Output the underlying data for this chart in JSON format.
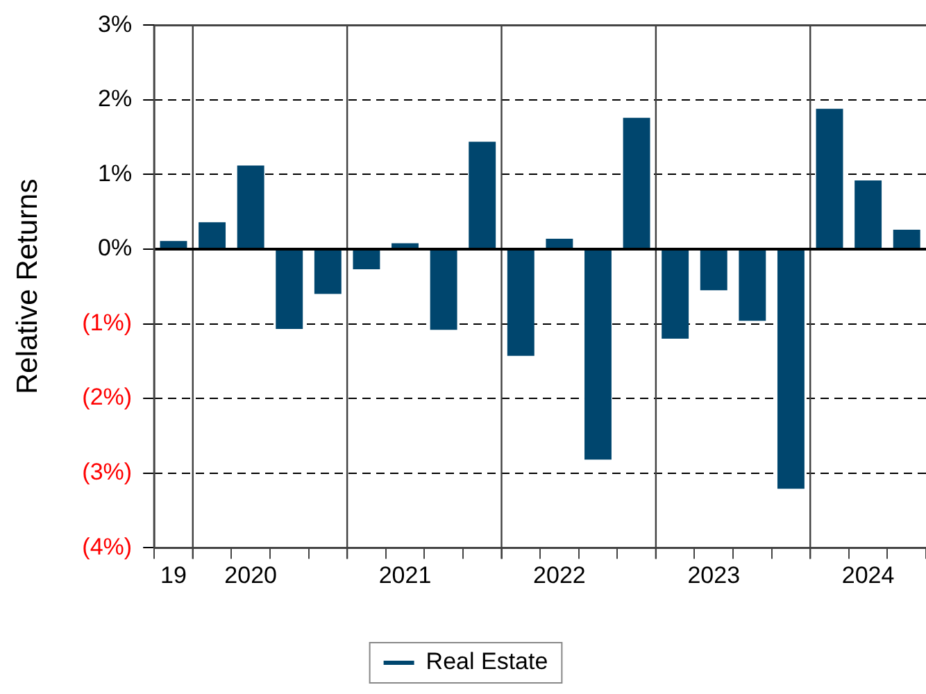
{
  "chart_data": {
    "type": "bar",
    "ylabel": "Relative Returns",
    "categories": [
      "19",
      null,
      "2020",
      null,
      null,
      null,
      "2021",
      null,
      null,
      null,
      "2022",
      null,
      null,
      null,
      "2023",
      null,
      null,
      null,
      "2024",
      null
    ],
    "series": [
      {
        "name": "Real Estate",
        "color": "#00466e",
        "values": [
          0.11,
          0.36,
          1.12,
          -1.07,
          -0.6,
          -0.27,
          0.08,
          -1.08,
          1.44,
          -1.43,
          0.14,
          -2.82,
          1.76,
          -1.2,
          -0.55,
          -0.96,
          -3.21,
          1.88,
          0.92,
          0.26
        ]
      }
    ],
    "ylim": [
      -4,
      3
    ],
    "yticks": [
      {
        "value": -4,
        "label": "(4%)"
      },
      {
        "value": -3,
        "label": "(3%)"
      },
      {
        "value": -2,
        "label": "(2%)"
      },
      {
        "value": -1,
        "label": "(1%)"
      },
      {
        "value": 0,
        "label": "0%"
      },
      {
        "value": 1,
        "label": "1%"
      },
      {
        "value": 2,
        "label": "2%"
      },
      {
        "value": 3,
        "label": "3%"
      }
    ],
    "grid": true,
    "legend": "bottom"
  }
}
